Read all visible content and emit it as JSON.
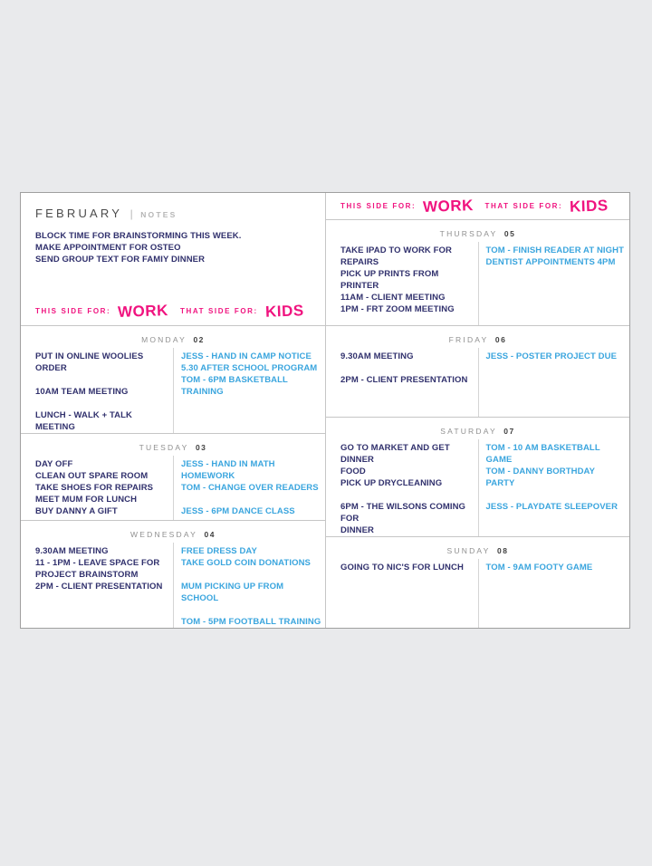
{
  "planner": {
    "title": "FEBRUARY",
    "title_separator": "|",
    "notes_label": "NOTES",
    "notes": "BLOCK TIME FOR BRAINSTORMING THIS WEEK.\nMAKE APPOINTMENT FOR OSTEO\nSEND GROUP TEXT FOR FAMIY DINNER",
    "side": {
      "this_label": "THIS SIDE FOR:",
      "this_value": "WORK",
      "that_label": "THAT SIDE FOR:",
      "that_value": "KIDS"
    },
    "colors": {
      "accent_pink": "#f0137f",
      "work_ink_navy": "#31316d",
      "kids_ink_blue": "#3aa5de",
      "page_background": "#e9eaec",
      "grid_line": "#c6c6c6"
    },
    "days": [
      {
        "name": "MONDAY",
        "num": "02",
        "work": "PUT IN ONLINE WOOLIES ORDER\n\n10AM TEAM MEETING\n\nLUNCH - WALK + TALK MEETING",
        "kids": "JESS - HAND IN CAMP NOTICE\n5.30 AFTER SCHOOL PROGRAM\nTOM - 6PM BASKETBALL TRAINING"
      },
      {
        "name": "TUESDAY",
        "num": "03",
        "work": "DAY OFF\nCLEAN OUT SPARE ROOM\nTAKE SHOES FOR REPAIRS\nMEET MUM FOR LUNCH\nBUY DANNY A GIFT",
        "kids": "JESS - HAND IN MATH HOMEWORK\nTOM - CHANGE OVER READERS\n\nJESS - 6PM DANCE CLASS"
      },
      {
        "name": "WEDNESDAY",
        "num": "04",
        "work": "9.30AM MEETING\n11 - 1PM - LEAVE SPACE FOR\nPROJECT BRAINSTORM\n2PM - CLIENT PRESENTATION",
        "kids": "FREE DRESS DAY\nTAKE GOLD COIN DONATIONS\n\nMUM PICKING UP FROM SCHOOL\n\nTOM - 5PM FOOTBALL TRAINING"
      },
      {
        "name": "THURSDAY",
        "num": "05",
        "work": "TAKE IPAD TO WORK FOR REPAIRS\nPICK UP PRINTS FROM PRINTER\n11AM - CLIENT MEETING\n1PM - FRT ZOOM MEETING",
        "kids": "TOM - FINISH READER AT NIGHT\nDENTIST APPOINTMENTS 4PM"
      },
      {
        "name": "FRIDAY",
        "num": "06",
        "work": "9.30AM MEETING\n\n2PM - CLIENT PRESENTATION",
        "kids": "JESS - POSTER PROJECT DUE"
      },
      {
        "name": "SATURDAY",
        "num": "07",
        "work": "GO TO MARKET AND GET DINNER\nFOOD\nPICK UP DRYCLEANING\n\n6PM - THE WILSONS COMING FOR\nDINNER",
        "kids": "TOM - 10 AM BASKETBALL GAME\nTOM - DANNY BORTHDAY PARTY\n\nJESS - PLAYDATE SLEEPOVER"
      },
      {
        "name": "SUNDAY",
        "num": "08",
        "work": "GOING TO NIC'S FOR LUNCH",
        "kids": "TOM - 9AM FOOTY GAME"
      }
    ]
  }
}
